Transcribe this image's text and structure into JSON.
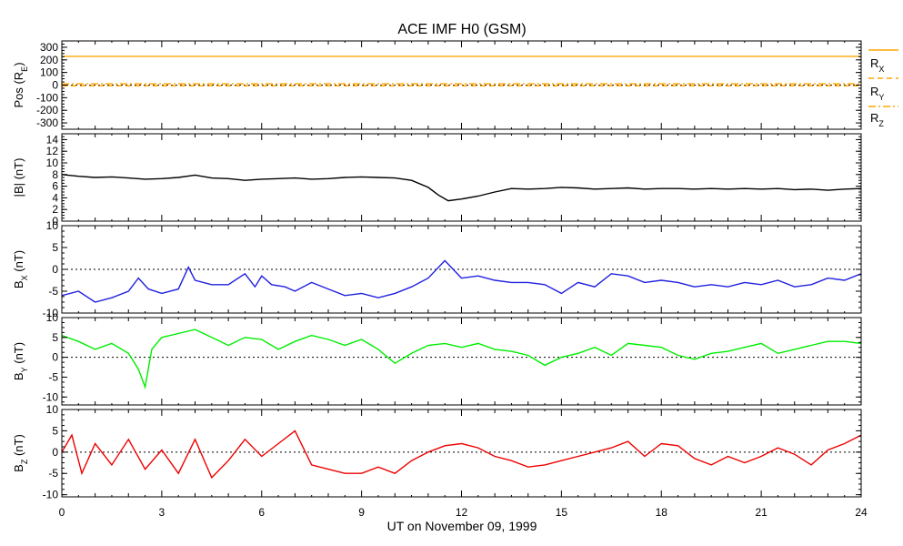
{
  "chart_data": {
    "type": "line",
    "title": "ACE IMF H0 (GSM)",
    "xlabel": "UT on November 09, 1999",
    "x_ticks": [
      0,
      3,
      6,
      9,
      12,
      15,
      18,
      21,
      24
    ],
    "xlim": [
      0,
      24
    ],
    "panels": [
      {
        "id": "pos",
        "ylabel": {
          "base": "Pos (R",
          "sub": "E",
          "close": ")"
        },
        "ylim": [
          -350,
          350
        ],
        "y_ticks": [
          300,
          200,
          100,
          0,
          -100,
          -200,
          -300
        ],
        "zero_line": true,
        "series": [
          {
            "name": {
              "base": "R",
              "sub": "X"
            },
            "color": "#ffa500",
            "style": "solid",
            "points": [
              [
                0,
                228
              ],
              [
                24,
                228
              ]
            ]
          },
          {
            "name": {
              "base": "R",
              "sub": "Y"
            },
            "color": "#ffa500",
            "style": "dashed",
            "points": [
              [
                0,
                -6
              ],
              [
                24,
                -6
              ]
            ]
          },
          {
            "name": {
              "base": "R",
              "sub": "Z"
            },
            "color": "#ffa500",
            "style": "dashdot",
            "points": [
              [
                0,
                10
              ],
              [
                24,
                10
              ]
            ]
          }
        ]
      },
      {
        "id": "bmag",
        "ylabel": {
          "base": "|B| (nT)",
          "sub": "",
          "close": ""
        },
        "ylim": [
          0,
          15
        ],
        "y_ticks": [
          14,
          12,
          10,
          8,
          6,
          4,
          2,
          0
        ],
        "zero_line": false,
        "series": [
          {
            "name": {
              "base": "|B|",
              "sub": ""
            },
            "color": "#000000",
            "style": "solid",
            "points": [
              [
                0.0,
                8.0
              ],
              [
                0.5,
                7.7
              ],
              [
                1.0,
                7.5
              ],
              [
                1.5,
                7.6
              ],
              [
                2.0,
                7.4
              ],
              [
                2.5,
                7.2
              ],
              [
                3.0,
                7.3
              ],
              [
                3.5,
                7.5
              ],
              [
                4.0,
                7.9
              ],
              [
                4.5,
                7.4
              ],
              [
                5.0,
                7.3
              ],
              [
                5.5,
                7.0
              ],
              [
                6.0,
                7.2
              ],
              [
                6.5,
                7.3
              ],
              [
                7.0,
                7.4
              ],
              [
                7.5,
                7.2
              ],
              [
                8.0,
                7.3
              ],
              [
                8.5,
                7.5
              ],
              [
                9.0,
                7.6
              ],
              [
                9.5,
                7.5
              ],
              [
                10.0,
                7.4
              ],
              [
                10.5,
                7.0
              ],
              [
                11.0,
                5.8
              ],
              [
                11.3,
                4.5
              ],
              [
                11.6,
                3.5
              ],
              [
                12.0,
                3.8
              ],
              [
                12.5,
                4.3
              ],
              [
                13.0,
                5.0
              ],
              [
                13.5,
                5.6
              ],
              [
                14.0,
                5.5
              ],
              [
                14.5,
                5.6
              ],
              [
                15.0,
                5.8
              ],
              [
                15.5,
                5.7
              ],
              [
                16.0,
                5.5
              ],
              [
                16.5,
                5.6
              ],
              [
                17.0,
                5.7
              ],
              [
                17.5,
                5.5
              ],
              [
                18.0,
                5.6
              ],
              [
                18.5,
                5.6
              ],
              [
                19.0,
                5.5
              ],
              [
                19.5,
                5.6
              ],
              [
                20.0,
                5.5
              ],
              [
                20.5,
                5.6
              ],
              [
                21.0,
                5.5
              ],
              [
                21.5,
                5.6
              ],
              [
                22.0,
                5.4
              ],
              [
                22.5,
                5.5
              ],
              [
                23.0,
                5.3
              ],
              [
                23.5,
                5.5
              ],
              [
                24.0,
                5.6
              ]
            ]
          }
        ]
      },
      {
        "id": "bx",
        "ylabel": {
          "base": "B",
          "sub": "X",
          "close": " (nT)"
        },
        "ylim": [
          -10,
          10
        ],
        "y_ticks": [
          10,
          5,
          0,
          -5,
          -10
        ],
        "zero_line": true,
        "series": [
          {
            "name": {
              "base": "B",
              "sub": "X"
            },
            "color": "#2020e0",
            "style": "solid",
            "points": [
              [
                0.0,
                -6.0
              ],
              [
                0.5,
                -5.0
              ],
              [
                1.0,
                -7.5
              ],
              [
                1.5,
                -6.5
              ],
              [
                2.0,
                -5.0
              ],
              [
                2.3,
                -2.0
              ],
              [
                2.6,
                -4.5
              ],
              [
                3.0,
                -5.5
              ],
              [
                3.5,
                -4.5
              ],
              [
                3.8,
                0.5
              ],
              [
                4.0,
                -2.5
              ],
              [
                4.5,
                -3.5
              ],
              [
                5.0,
                -3.5
              ],
              [
                5.5,
                -1.0
              ],
              [
                5.8,
                -4.0
              ],
              [
                6.0,
                -1.5
              ],
              [
                6.3,
                -3.5
              ],
              [
                6.7,
                -4.0
              ],
              [
                7.0,
                -5.0
              ],
              [
                7.5,
                -3.0
              ],
              [
                8.0,
                -4.5
              ],
              [
                8.5,
                -6.0
              ],
              [
                9.0,
                -5.5
              ],
              [
                9.5,
                -6.5
              ],
              [
                10.0,
                -5.5
              ],
              [
                10.5,
                -4.0
              ],
              [
                11.0,
                -2.0
              ],
              [
                11.5,
                2.0
              ],
              [
                12.0,
                -2.0
              ],
              [
                12.5,
                -1.5
              ],
              [
                13.0,
                -2.5
              ],
              [
                13.5,
                -3.0
              ],
              [
                14.0,
                -3.0
              ],
              [
                14.5,
                -3.5
              ],
              [
                15.0,
                -5.5
              ],
              [
                15.5,
                -3.0
              ],
              [
                16.0,
                -4.0
              ],
              [
                16.5,
                -1.0
              ],
              [
                17.0,
                -1.5
              ],
              [
                17.5,
                -3.0
              ],
              [
                18.0,
                -2.5
              ],
              [
                18.5,
                -3.0
              ],
              [
                19.0,
                -4.0
              ],
              [
                19.5,
                -3.5
              ],
              [
                20.0,
                -4.0
              ],
              [
                20.5,
                -3.0
              ],
              [
                21.0,
                -3.5
              ],
              [
                21.5,
                -2.5
              ],
              [
                22.0,
                -4.0
              ],
              [
                22.5,
                -3.5
              ],
              [
                23.0,
                -2.0
              ],
              [
                23.5,
                -2.5
              ],
              [
                24.0,
                -1.0
              ]
            ]
          }
        ]
      },
      {
        "id": "by",
        "ylabel": {
          "base": "B",
          "sub": "Y",
          "close": " (nT)"
        },
        "ylim": [
          -12,
          10
        ],
        "y_ticks": [
          10,
          5,
          0,
          -5,
          -10
        ],
        "zero_line": true,
        "series": [
          {
            "name": {
              "base": "B",
              "sub": "Y"
            },
            "color": "#00ee00",
            "style": "solid",
            "points": [
              [
                0.0,
                5.5
              ],
              [
                0.5,
                4.0
              ],
              [
                1.0,
                2.0
              ],
              [
                1.5,
                3.5
              ],
              [
                2.0,
                1.0
              ],
              [
                2.3,
                -3.0
              ],
              [
                2.5,
                -7.5
              ],
              [
                2.7,
                2.0
              ],
              [
                3.0,
                5.0
              ],
              [
                3.5,
                6.0
              ],
              [
                4.0,
                7.0
              ],
              [
                4.5,
                5.0
              ],
              [
                5.0,
                3.0
              ],
              [
                5.5,
                5.0
              ],
              [
                6.0,
                4.5
              ],
              [
                6.5,
                2.0
              ],
              [
                7.0,
                4.0
              ],
              [
                7.5,
                5.5
              ],
              [
                8.0,
                4.5
              ],
              [
                8.5,
                3.0
              ],
              [
                9.0,
                4.5
              ],
              [
                9.5,
                2.0
              ],
              [
                10.0,
                -1.5
              ],
              [
                10.5,
                1.0
              ],
              [
                11.0,
                3.0
              ],
              [
                11.5,
                3.5
              ],
              [
                12.0,
                2.5
              ],
              [
                12.5,
                3.5
              ],
              [
                13.0,
                2.0
              ],
              [
                13.5,
                1.5
              ],
              [
                14.0,
                0.5
              ],
              [
                14.5,
                -2.0
              ],
              [
                15.0,
                0.0
              ],
              [
                15.5,
                1.0
              ],
              [
                16.0,
                2.5
              ],
              [
                16.5,
                0.5
              ],
              [
                17.0,
                3.5
              ],
              [
                17.5,
                3.0
              ],
              [
                18.0,
                2.5
              ],
              [
                18.5,
                0.5
              ],
              [
                19.0,
                -0.5
              ],
              [
                19.5,
                1.0
              ],
              [
                20.0,
                1.5
              ],
              [
                20.5,
                2.5
              ],
              [
                21.0,
                3.5
              ],
              [
                21.5,
                1.0
              ],
              [
                22.0,
                2.0
              ],
              [
                22.5,
                3.0
              ],
              [
                23.0,
                4.0
              ],
              [
                23.5,
                4.0
              ],
              [
                24.0,
                3.5
              ]
            ]
          }
        ]
      },
      {
        "id": "bz",
        "ylabel": {
          "base": "B",
          "sub": "Z",
          "close": " (nT)"
        },
        "ylim": [
          -10.5,
          10
        ],
        "y_ticks": [
          10,
          5,
          0,
          -5,
          -10
        ],
        "zero_line": true,
        "series": [
          {
            "name": {
              "base": "B",
              "sub": "Z"
            },
            "color": "#ee0000",
            "style": "solid",
            "points": [
              [
                0.0,
                0.0
              ],
              [
                0.3,
                4.0
              ],
              [
                0.6,
                -5.0
              ],
              [
                1.0,
                2.0
              ],
              [
                1.5,
                -3.0
              ],
              [
                2.0,
                3.0
              ],
              [
                2.5,
                -4.0
              ],
              [
                3.0,
                0.5
              ],
              [
                3.5,
                -5.0
              ],
              [
                4.0,
                3.0
              ],
              [
                4.5,
                -6.0
              ],
              [
                5.0,
                -2.0
              ],
              [
                5.5,
                3.0
              ],
              [
                6.0,
                -1.0
              ],
              [
                6.5,
                2.0
              ],
              [
                7.0,
                5.0
              ],
              [
                7.5,
                -3.0
              ],
              [
                8.0,
                -4.0
              ],
              [
                8.5,
                -5.0
              ],
              [
                9.0,
                -5.0
              ],
              [
                9.5,
                -3.5
              ],
              [
                10.0,
                -5.0
              ],
              [
                10.5,
                -2.0
              ],
              [
                11.0,
                0.0
              ],
              [
                11.5,
                1.5
              ],
              [
                12.0,
                2.0
              ],
              [
                12.5,
                1.0
              ],
              [
                13.0,
                -1.0
              ],
              [
                13.5,
                -2.0
              ],
              [
                14.0,
                -3.5
              ],
              [
                14.5,
                -3.0
              ],
              [
                15.0,
                -2.0
              ],
              [
                15.5,
                -1.0
              ],
              [
                16.0,
                0.0
              ],
              [
                16.5,
                1.0
              ],
              [
                17.0,
                2.5
              ],
              [
                17.5,
                -1.0
              ],
              [
                18.0,
                2.0
              ],
              [
                18.5,
                1.5
              ],
              [
                19.0,
                -1.5
              ],
              [
                19.5,
                -3.0
              ],
              [
                20.0,
                -1.0
              ],
              [
                20.5,
                -2.5
              ],
              [
                21.0,
                -1.0
              ],
              [
                21.5,
                1.0
              ],
              [
                22.0,
                -0.5
              ],
              [
                22.5,
                -3.0
              ],
              [
                23.0,
                0.5
              ],
              [
                23.5,
                2.0
              ],
              [
                24.0,
                4.0
              ]
            ]
          }
        ]
      }
    ]
  }
}
